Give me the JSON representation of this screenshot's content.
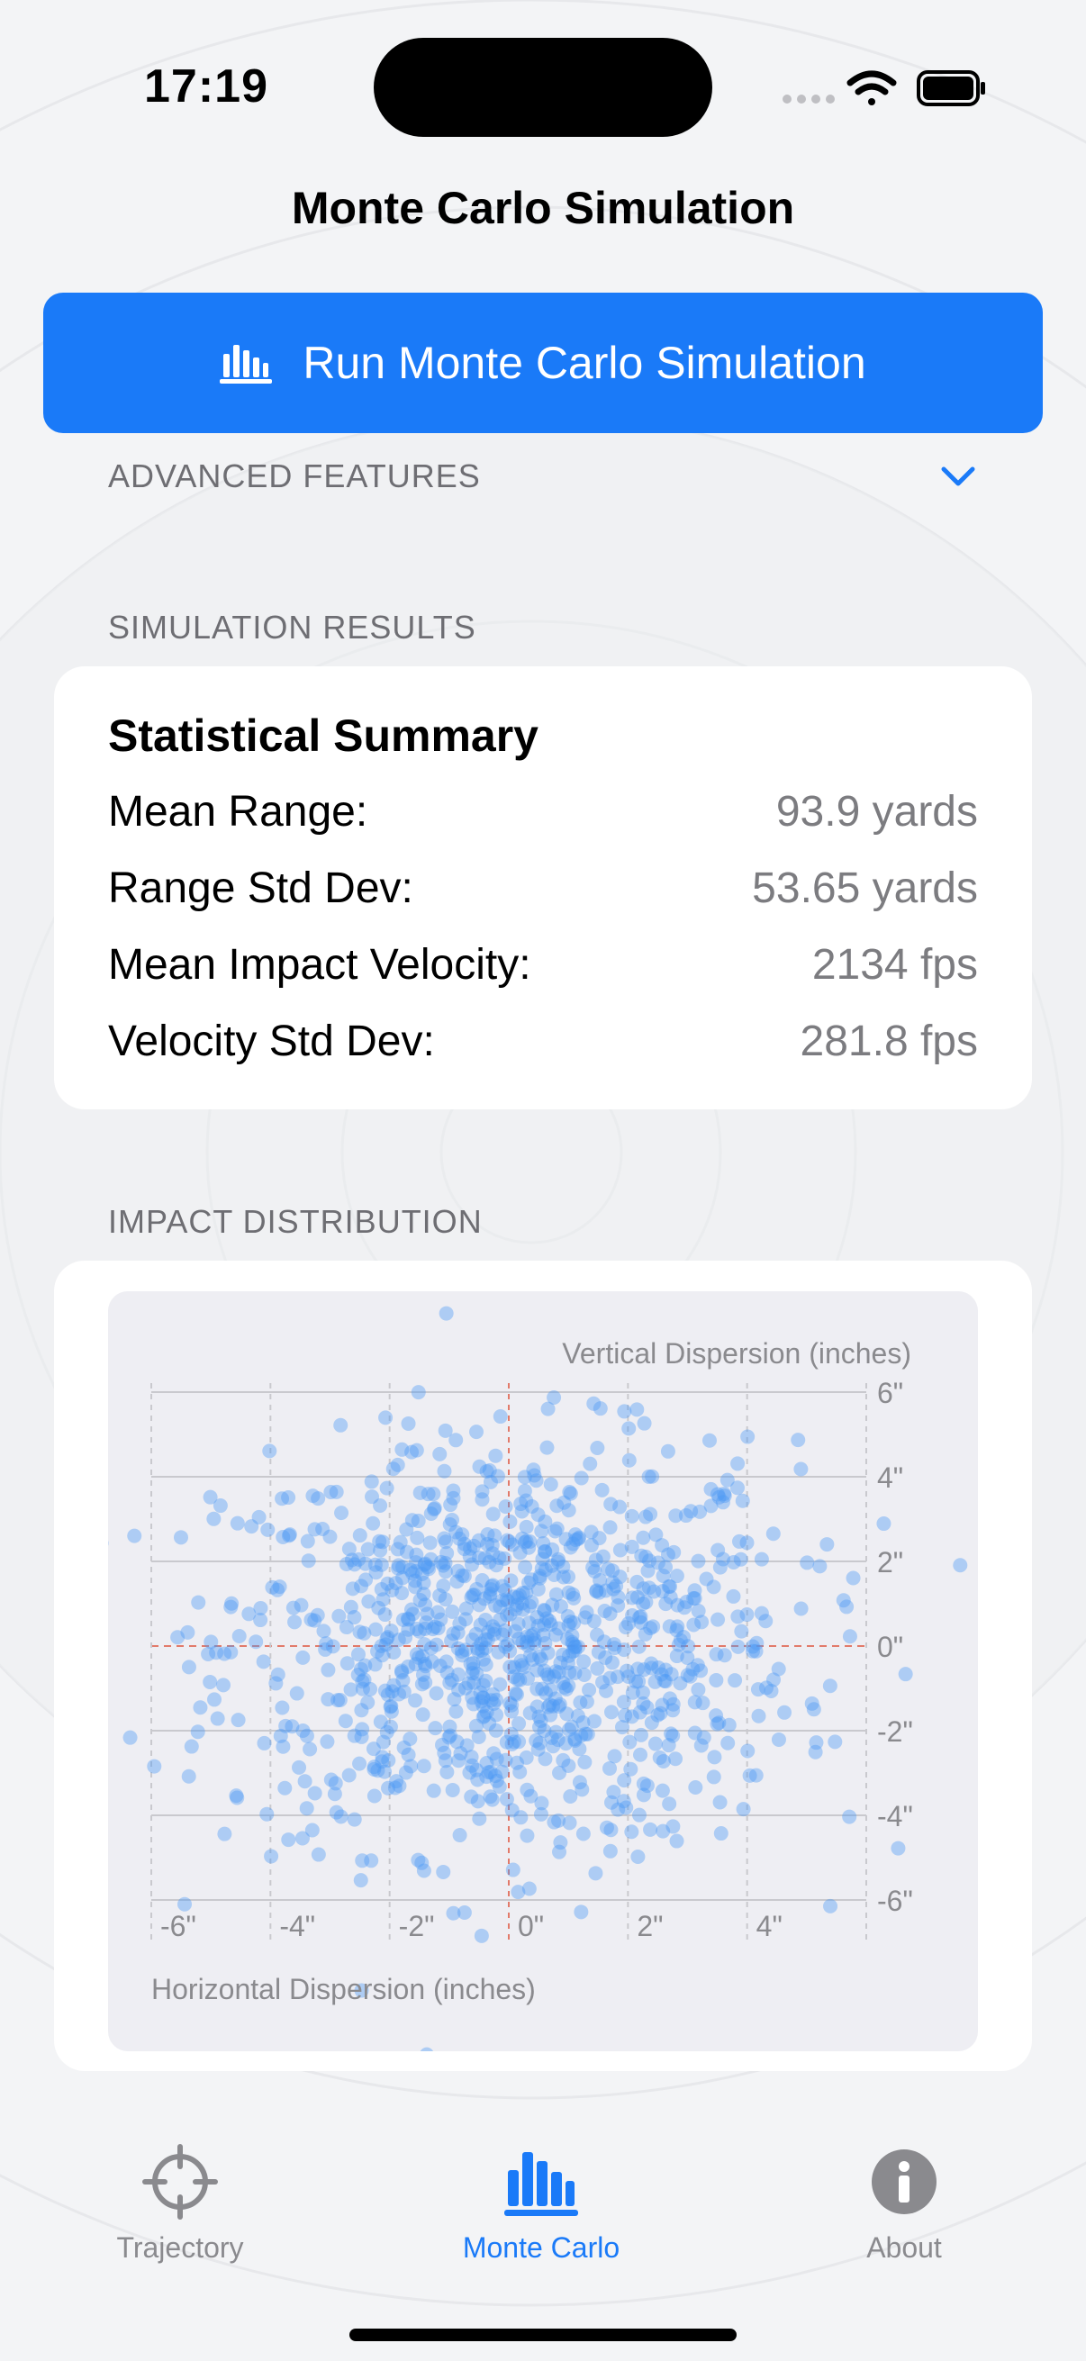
{
  "status": {
    "time": "17:19"
  },
  "nav": {
    "title": "Monte Carlo Simulation"
  },
  "run_button": {
    "label": "Run Monte Carlo Simulation",
    "icon": "chart-bar-icon"
  },
  "advanced": {
    "header": "ADVANCED FEATURES",
    "icon": "chevron-down-icon"
  },
  "results": {
    "header": "SIMULATION RESULTS",
    "summary_title": "Statistical Summary",
    "rows": [
      {
        "label": "Mean Range:",
        "value": "93.9 yards"
      },
      {
        "label": "Range Std Dev:",
        "value": "53.65 yards"
      },
      {
        "label": "Mean Impact Velocity:",
        "value": "2134 fps"
      },
      {
        "label": "Velocity Std Dev:",
        "value": "281.8 fps"
      }
    ]
  },
  "distribution": {
    "header": "IMPACT DISTRIBUTION"
  },
  "chart_data": {
    "type": "scatter",
    "xlabel": "Horizontal Dispersion (inches)",
    "ylabel": "Vertical Dispersion (inches)",
    "xlim": [
      -6.5,
      6.5
    ],
    "ylim": [
      -6.5,
      6.5
    ],
    "x_ticks": [
      "-6\"",
      "-4\"",
      "-2\"",
      "0\"",
      "2\"",
      "4\""
    ],
    "y_ticks": [
      "6\"",
      "4\"",
      "2\"",
      "0\"",
      "-2\"",
      "-4\"",
      "-6\""
    ],
    "point_color": "#4a98f5",
    "point_count": 1000,
    "x_std": 2.4,
    "y_std": 2.4
  },
  "tabs": [
    {
      "label": "Trajectory",
      "icon": "crosshair-icon",
      "active": false
    },
    {
      "label": "Monte Carlo",
      "icon": "chart-bar-icon",
      "active": true
    },
    {
      "label": "About",
      "icon": "info-icon",
      "active": false
    }
  ],
  "colors": {
    "accent": "#1a7af8",
    "background": "#f3f4f6",
    "card": "#ffffff"
  }
}
